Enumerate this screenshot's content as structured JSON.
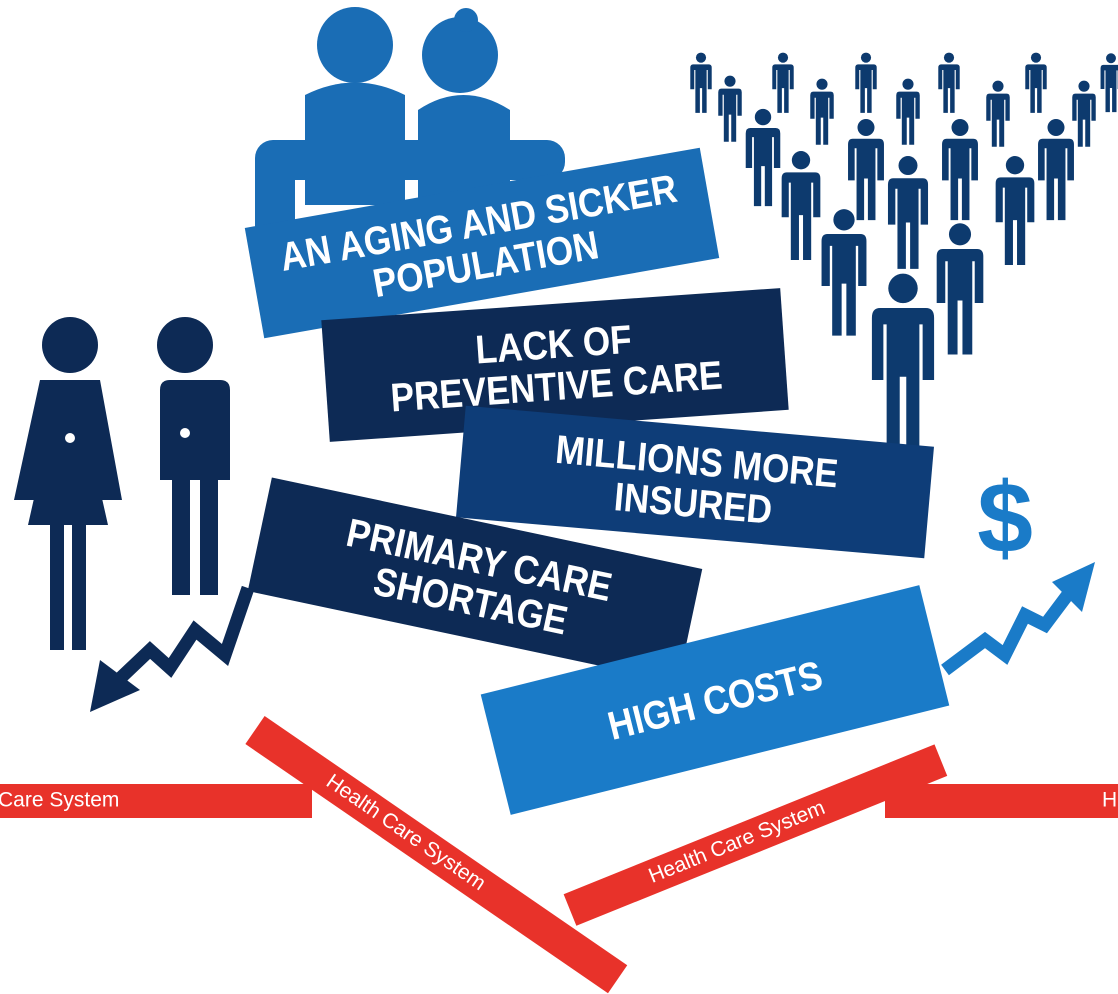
{
  "panels": [
    {
      "lines": [
        "AN AGING AND SICKER",
        "POPULATION"
      ]
    },
    {
      "lines": [
        "LACK OF",
        "PREVENTIVE CARE"
      ]
    },
    {
      "lines": [
        "MILLIONS MORE",
        "INSURED"
      ]
    },
    {
      "lines": [
        "PRIMARY CARE",
        "SHORTAGE"
      ]
    },
    {
      "lines": [
        "HIGH COSTS"
      ]
    }
  ],
  "bars": [
    "Care System",
    "Health Care System",
    "Health Care System",
    "H"
  ],
  "dollar": "$"
}
